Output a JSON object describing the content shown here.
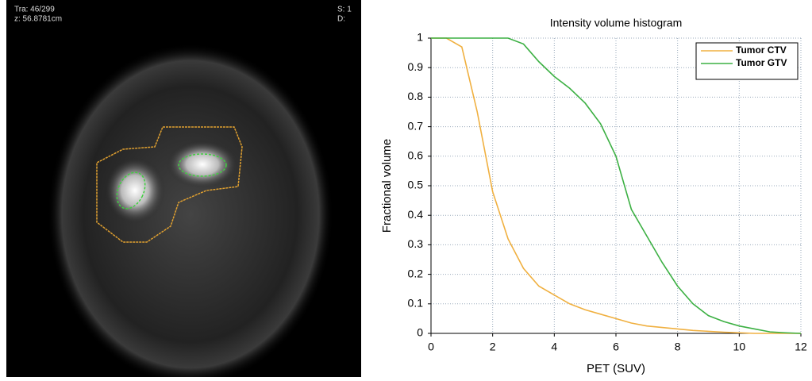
{
  "scan_overlay": {
    "top_left": [
      "Tra: 46/299",
      "z: 56.8781cm"
    ],
    "top_right": [
      "S: 1",
      "D:"
    ]
  },
  "chart_data": {
    "type": "line",
    "title": "Intensity volume histogram",
    "x_label": "PET (SUV)",
    "y_label": "Fractional volume",
    "x": [
      0,
      0.5,
      1,
      1.5,
      2,
      2.5,
      3,
      3.5,
      4,
      4.5,
      5,
      5.5,
      6,
      6.5,
      7,
      7.5,
      8,
      8.5,
      9,
      9.5,
      10,
      10.5,
      11,
      11.5,
      12
    ],
    "series": [
      {
        "name": "Tumor CTV",
        "color": "#f0b040",
        "values": [
          1,
          1,
          0.97,
          0.75,
          0.48,
          0.32,
          0.22,
          0.16,
          0.13,
          0.1,
          0.08,
          0.065,
          0.05,
          0.035,
          0.025,
          0.02,
          0.015,
          0.01,
          0.007,
          0.004,
          0.002,
          0,
          0,
          0,
          0
        ]
      },
      {
        "name": "Tumor GTV",
        "color": "#3cb043",
        "values": [
          1,
          1,
          1,
          1,
          1,
          1,
          0.98,
          0.92,
          0.87,
          0.83,
          0.78,
          0.71,
          0.6,
          0.42,
          0.33,
          0.24,
          0.16,
          0.1,
          0.06,
          0.04,
          0.025,
          0.015,
          0.005,
          0.002,
          0
        ]
      }
    ],
    "xlim": [
      0,
      12
    ],
    "xticks": [
      0,
      2,
      4,
      6,
      8,
      10,
      12
    ],
    "ylim": [
      0,
      1
    ],
    "yticks": [
      0,
      0.1,
      0.2,
      0.3,
      0.4,
      0.5,
      0.6,
      0.7,
      0.8,
      0.9,
      1
    ],
    "grid": true,
    "legend": "upper right"
  }
}
